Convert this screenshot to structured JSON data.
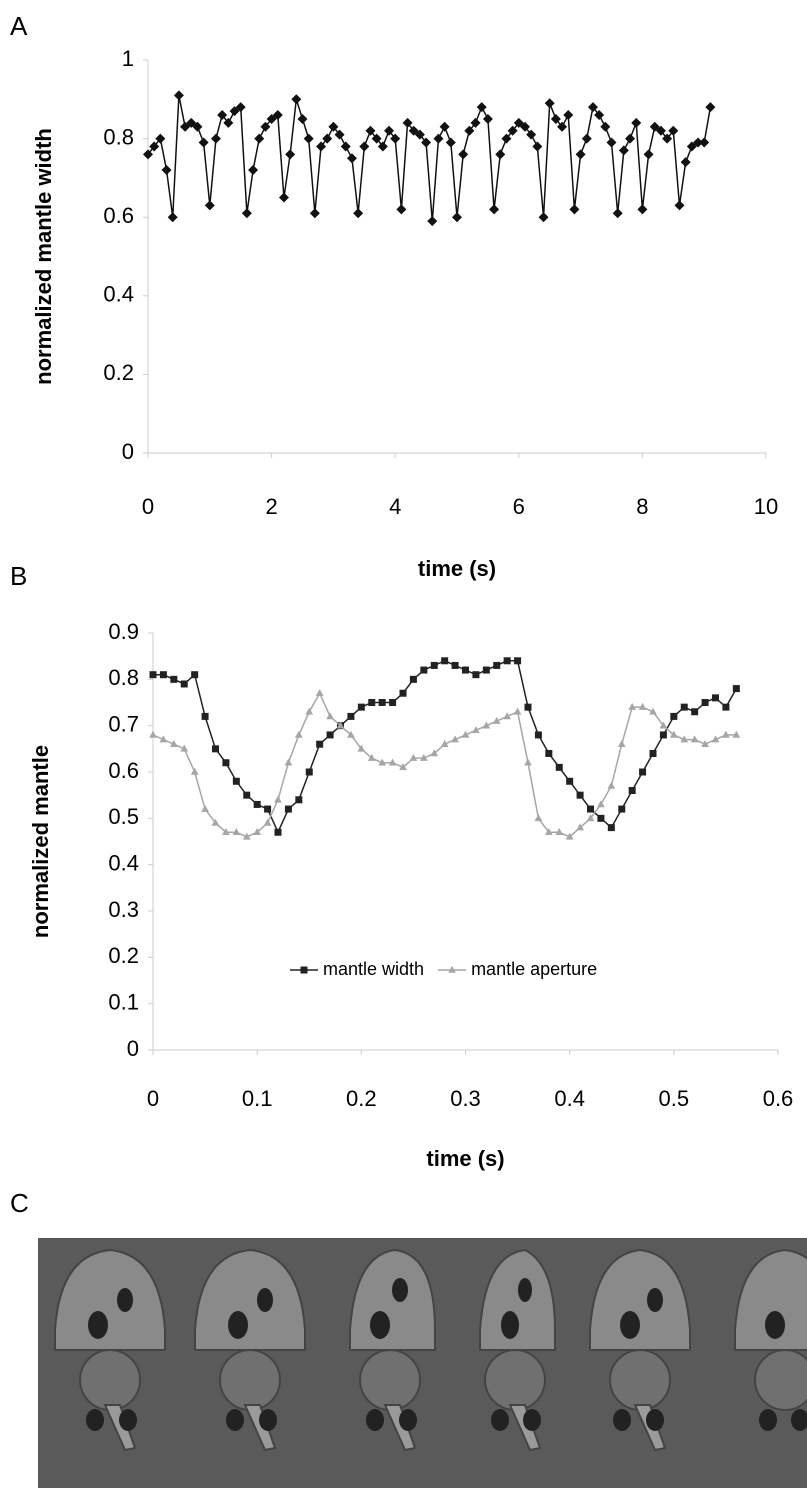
{
  "panel_labels": [
    "A",
    "B",
    "C"
  ],
  "chart_data": [
    {
      "type": "line",
      "xlabel": "time (s)",
      "ylabel": "normalized mantle width",
      "x": [
        0.0,
        0.1,
        0.2,
        0.3,
        0.4,
        0.5,
        0.6,
        0.7,
        0.8,
        0.9,
        1.0,
        1.1,
        1.2,
        1.3,
        1.4,
        1.5,
        1.6,
        1.7,
        1.8,
        1.9,
        2.0,
        2.1,
        2.2,
        2.3,
        2.4,
        2.5,
        2.6,
        2.7,
        2.8,
        2.9,
        3.0,
        3.1,
        3.2,
        3.3,
        3.4,
        3.5,
        3.6,
        3.7,
        3.8,
        3.9,
        4.0,
        4.1,
        4.2,
        4.3,
        4.4,
        4.5,
        4.6,
        4.7,
        4.8,
        4.9,
        5.0,
        5.1,
        5.2,
        5.3,
        5.4,
        5.5,
        5.6,
        5.7,
        5.8,
        5.9,
        6.0,
        6.1,
        6.2,
        6.3,
        6.4,
        6.5,
        6.6,
        6.7,
        6.8,
        6.9,
        7.0,
        7.1,
        7.2,
        7.3,
        7.4,
        7.5,
        7.6,
        7.7,
        7.8,
        7.9,
        8.0,
        8.1,
        8.2,
        8.3,
        8.4,
        8.5,
        8.6,
        8.7,
        8.8,
        8.9,
        9.0,
        9.1
      ],
      "values": [
        0.76,
        0.78,
        0.8,
        0.72,
        0.6,
        0.91,
        0.83,
        0.84,
        0.83,
        0.79,
        0.63,
        0.8,
        0.86,
        0.84,
        0.87,
        0.88,
        0.61,
        0.72,
        0.8,
        0.83,
        0.85,
        0.86,
        0.65,
        0.76,
        0.9,
        0.85,
        0.8,
        0.61,
        0.78,
        0.8,
        0.83,
        0.81,
        0.78,
        0.75,
        0.61,
        0.78,
        0.82,
        0.8,
        0.78,
        0.82,
        0.8,
        0.62,
        0.84,
        0.82,
        0.81,
        0.79,
        0.59,
        0.8,
        0.83,
        0.79,
        0.6,
        0.76,
        0.82,
        0.84,
        0.88,
        0.85,
        0.62,
        0.76,
        0.8,
        0.82,
        0.84,
        0.83,
        0.81,
        0.78,
        0.6,
        0.89,
        0.85,
        0.83,
        0.86,
        0.62,
        0.76,
        0.8,
        0.88,
        0.86,
        0.83,
        0.79,
        0.61,
        0.77,
        0.8,
        0.84,
        0.62,
        0.76,
        0.83,
        0.82,
        0.8,
        0.82,
        0.63,
        0.74,
        0.78,
        0.79,
        0.79,
        0.88
      ],
      "color": "#111111",
      "marker": "diamond",
      "xlim": [
        0,
        10
      ],
      "xticks": [
        0,
        2,
        4,
        6,
        8,
        10
      ],
      "ylim": [
        0,
        1
      ],
      "yticks": [
        0,
        0.2,
        0.4,
        0.6,
        0.8,
        1
      ]
    },
    {
      "type": "line",
      "xlabel": "time (s)",
      "ylabel": "normalized mantle",
      "x": [
        0.0,
        0.01,
        0.02,
        0.03,
        0.04,
        0.05,
        0.06,
        0.07,
        0.08,
        0.09,
        0.1,
        0.11,
        0.12,
        0.13,
        0.14,
        0.15,
        0.16,
        0.17,
        0.18,
        0.19,
        0.2,
        0.21,
        0.22,
        0.23,
        0.24,
        0.25,
        0.26,
        0.27,
        0.28,
        0.29,
        0.3,
        0.31,
        0.32,
        0.33,
        0.34,
        0.35,
        0.36,
        0.37,
        0.38,
        0.39,
        0.4,
        0.41,
        0.42,
        0.43,
        0.44,
        0.45,
        0.46,
        0.47,
        0.48,
        0.49,
        0.5,
        0.51,
        0.52,
        0.53,
        0.54,
        0.55,
        0.56
      ],
      "series": [
        {
          "name": "mantle width",
          "color": "#222222",
          "marker": "square",
          "values": [
            0.81,
            0.81,
            0.8,
            0.79,
            0.81,
            0.72,
            0.65,
            0.62,
            0.58,
            0.55,
            0.53,
            0.52,
            0.47,
            0.52,
            0.54,
            0.6,
            0.66,
            0.68,
            0.7,
            0.72,
            0.74,
            0.75,
            0.75,
            0.75,
            0.77,
            0.8,
            0.82,
            0.83,
            0.84,
            0.83,
            0.82,
            0.81,
            0.82,
            0.83,
            0.84,
            0.84,
            0.74,
            0.68,
            0.64,
            0.61,
            0.58,
            0.55,
            0.52,
            0.5,
            0.48,
            0.52,
            0.56,
            0.6,
            0.64,
            0.68,
            0.72,
            0.74,
            0.73,
            0.75,
            0.76,
            0.74,
            0.78
          ]
        },
        {
          "name": "mantle aperture",
          "color": "#a6a6a6",
          "marker": "triangle",
          "values": [
            0.68,
            0.67,
            0.66,
            0.65,
            0.6,
            0.52,
            0.49,
            0.47,
            0.47,
            0.46,
            0.47,
            0.49,
            0.54,
            0.62,
            0.68,
            0.73,
            0.77,
            0.72,
            0.7,
            0.68,
            0.65,
            0.63,
            0.62,
            0.62,
            0.61,
            0.63,
            0.63,
            0.64,
            0.66,
            0.67,
            0.68,
            0.69,
            0.7,
            0.71,
            0.72,
            0.73,
            0.62,
            0.5,
            0.47,
            0.47,
            0.46,
            0.48,
            0.5,
            0.53,
            0.57,
            0.66,
            0.74,
            0.74,
            0.73,
            0.7,
            0.68,
            0.67,
            0.67,
            0.66,
            0.67,
            0.68,
            0.68
          ]
        }
      ],
      "xlim": [
        0,
        0.6
      ],
      "xticks": [
        0,
        0.1,
        0.2,
        0.3,
        0.4,
        0.5,
        0.6
      ],
      "ylim": [
        0,
        0.9
      ],
      "yticks": [
        0,
        0.1,
        0.2,
        0.3,
        0.4,
        0.5,
        0.6,
        0.7,
        0.8,
        0.9
      ]
    }
  ]
}
